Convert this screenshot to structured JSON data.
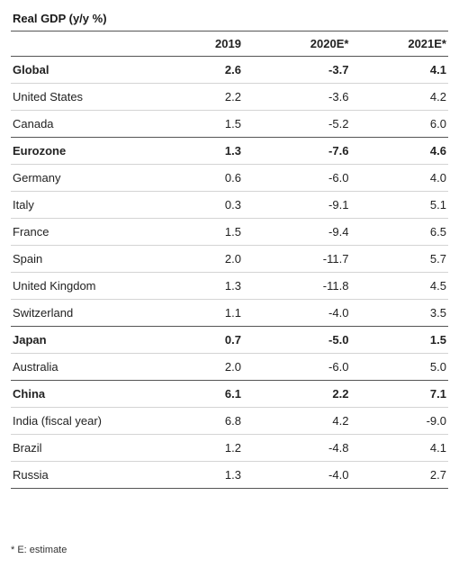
{
  "title": "Real GDP (y/y %)",
  "columns": [
    "",
    "2019",
    "2020E*",
    "2021E*"
  ],
  "rows": [
    {
      "name": "Global",
      "v2019": "2.6",
      "v2020": "-3.7",
      "v2021": "4.1",
      "bold": true
    },
    {
      "name": "United States",
      "v2019": "2.2",
      "v2020": "-3.6",
      "v2021": "4.2",
      "bold": false
    },
    {
      "name": "Canada",
      "v2019": "1.5",
      "v2020": "-5.2",
      "v2021": "6.0",
      "bold": false
    },
    {
      "name": "Eurozone",
      "v2019": "1.3",
      "v2020": "-7.6",
      "v2021": "4.6",
      "bold": true
    },
    {
      "name": "Germany",
      "v2019": "0.6",
      "v2020": "-6.0",
      "v2021": "4.0",
      "bold": false
    },
    {
      "name": "Italy",
      "v2019": "0.3",
      "v2020": "-9.1",
      "v2021": "5.1",
      "bold": false
    },
    {
      "name": "France",
      "v2019": "1.5",
      "v2020": "-9.4",
      "v2021": "6.5",
      "bold": false
    },
    {
      "name": "Spain",
      "v2019": "2.0",
      "v2020": "-11.7",
      "v2021": "5.7",
      "bold": false
    },
    {
      "name": "United Kingdom",
      "v2019": "1.3",
      "v2020": "-11.8",
      "v2021": "4.5",
      "bold": false
    },
    {
      "name": "Switzerland",
      "v2019": "1.1",
      "v2020": "-4.0",
      "v2021": "3.5",
      "bold": false
    },
    {
      "name": "Japan",
      "v2019": "0.7",
      "v2020": "-5.0",
      "v2021": "1.5",
      "bold": true
    },
    {
      "name": "Australia",
      "v2019": "2.0",
      "v2020": "-6.0",
      "v2021": "5.0",
      "bold": false
    },
    {
      "name": "China",
      "v2019": "6.1",
      "v2020": "2.2",
      "v2021": "7.1",
      "bold": true
    },
    {
      "name": "India (fiscal year)",
      "v2019": "6.8",
      "v2020": "4.2",
      "v2021": "-9.0",
      "bold": false
    },
    {
      "name": "Brazil",
      "v2019": "1.2",
      "v2020": "-4.8",
      "v2021": "4.1",
      "bold": false
    },
    {
      "name": "Russia",
      "v2019": "1.3",
      "v2020": "-4.0",
      "v2021": "2.7",
      "bold": false
    }
  ],
  "footnote": "* E: estimate"
}
